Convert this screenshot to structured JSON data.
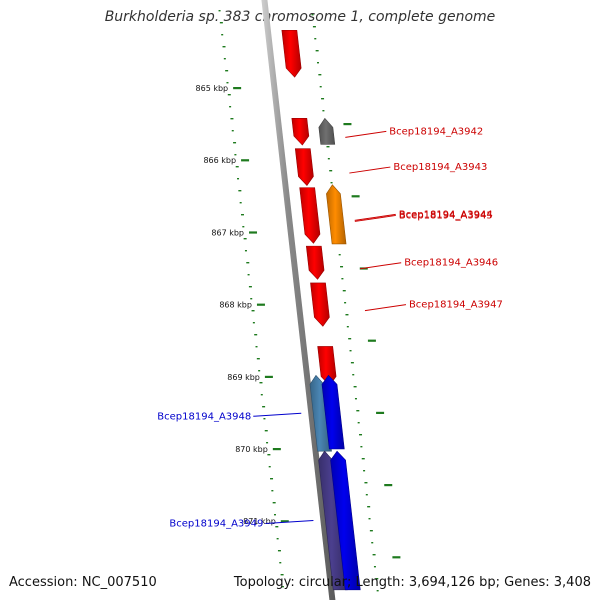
{
  "title": "Burkholderia sp. 383 chromosome 1, complete genome",
  "footer": {
    "accession": "Accession: NC_007510",
    "summary": "Topology: circular; Length: 3,694,126 bp; Genes: 3,408"
  },
  "colors": {
    "tick": "#1e7a1e",
    "backbone": "#888888",
    "red_gene": "#ff0000",
    "gray_gene": "#707070",
    "orange_gene": "#ff8c00",
    "blue_gene": "#0000ee",
    "steel_gene": "#4a86b4",
    "purple_gene": "#4b3f8f",
    "label_red": "#cc0000",
    "label_blue": "#0000cc"
  },
  "scale": {
    "unit": "kbp",
    "ticks": [
      {
        "kbp": 865,
        "label": "865 kbp"
      },
      {
        "kbp": 866,
        "label": "866 kbp"
      },
      {
        "kbp": 867,
        "label": "867 kbp"
      },
      {
        "kbp": 868,
        "label": "868 kbp"
      },
      {
        "kbp": 869,
        "label": "869 kbp"
      },
      {
        "kbp": 870,
        "label": "870 kbp"
      },
      {
        "kbp": 871,
        "label": "871 kbp"
      }
    ]
  },
  "genes": [
    {
      "name": "",
      "start_kbp": 864.2,
      "end_kbp": 864.85,
      "strand": "+",
      "track": "forward",
      "color": "#ff0000"
    },
    {
      "name": "Bcep18194_A3942",
      "start_kbp": 865.42,
      "end_kbp": 865.78,
      "strand": "-",
      "track": "reverse",
      "color": "#707070"
    },
    {
      "name": "",
      "start_kbp": 865.42,
      "end_kbp": 865.79,
      "strand": "+",
      "track": "forward",
      "color": "#ff0000"
    },
    {
      "name": "Bcep18194_A3943",
      "start_kbp": 865.84,
      "end_kbp": 866.35,
      "strand": "+",
      "track": "forward",
      "color": "#ff0000"
    },
    {
      "name": "Bcep18194_A3944",
      "start_kbp": 866.34,
      "end_kbp": 867.16,
      "strand": "-",
      "track": "reverse",
      "color": "#ff8c00"
    },
    {
      "name": "Bcep18194_A3945",
      "start_kbp": 866.38,
      "end_kbp": 867.15,
      "strand": "+",
      "track": "forward",
      "color": "#ff0000"
    },
    {
      "name": "Bcep18194_A3946",
      "start_kbp": 867.19,
      "end_kbp": 867.65,
      "strand": "+",
      "track": "forward",
      "color": "#ff0000"
    },
    {
      "name": "Bcep18194_A3947",
      "start_kbp": 867.7,
      "end_kbp": 868.3,
      "strand": "+",
      "track": "forward",
      "color": "#ff0000"
    },
    {
      "name": "",
      "start_kbp": 868.58,
      "end_kbp": 869.12,
      "strand": "+",
      "track": "forward",
      "color": "#ff0000"
    },
    {
      "name": "Bcep18194_A3948",
      "start_kbp": 868.98,
      "end_kbp": 870.03,
      "strand": "-",
      "track": "reverse_left",
      "color": "#4a86b4"
    },
    {
      "name": "",
      "start_kbp": 868.98,
      "end_kbp": 870.0,
      "strand": "-",
      "track": "forward",
      "color": "#0000ee"
    },
    {
      "name": "Bcep18194_A3949",
      "start_kbp": 870.03,
      "end_kbp": 871.95,
      "strand": "-",
      "track": "reverse_left",
      "color": "#4b3f8f"
    },
    {
      "name": "",
      "start_kbp": 870.03,
      "end_kbp": 871.95,
      "strand": "-",
      "track": "forward",
      "color": "#0000ee"
    }
  ]
}
